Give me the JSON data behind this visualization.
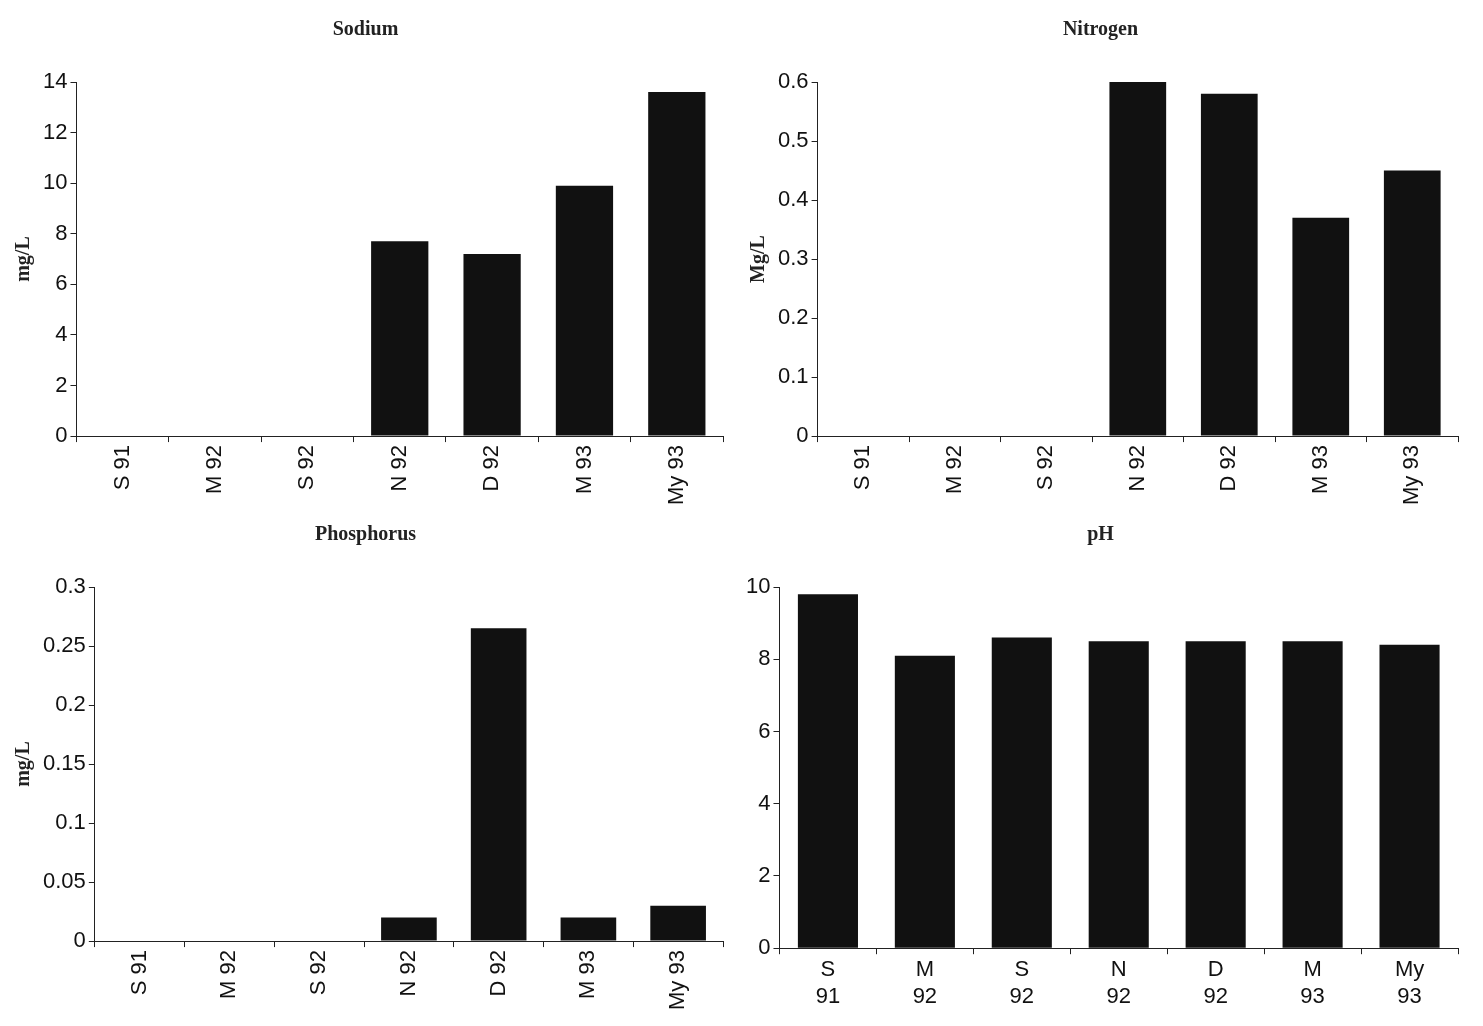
{
  "chart_data": [
    {
      "type": "bar",
      "title": "Sodium",
      "ylabel": "mg/L",
      "categories": [
        "S 91",
        "M 92",
        "S 92",
        "N 92",
        "D 92",
        "M 93",
        "My 93"
      ],
      "values": [
        0,
        0,
        0,
        7.7,
        7.2,
        9.9,
        13.6
      ],
      "color": "#111111",
      "ylim": [
        0,
        14
      ],
      "yticks": [
        0,
        2,
        4,
        6,
        8,
        10,
        12,
        14
      ]
    },
    {
      "type": "bar",
      "title": "Nitrogen",
      "ylabel": "Mg/L",
      "categories": [
        "S 91",
        "M 92",
        "S 92",
        "N 92",
        "D 92",
        "M 93",
        "My 93"
      ],
      "values": [
        0,
        0,
        0,
        0.6,
        0.58,
        0.37,
        0.45
      ],
      "color": "#111111",
      "ylim": [
        0,
        0.6
      ],
      "yticks": [
        0,
        0.1,
        0.2,
        0.3,
        0.4,
        0.5,
        0.6
      ]
    },
    {
      "type": "bar",
      "title": "Phosphorus",
      "ylabel": "mg/L",
      "categories": [
        "S 91",
        "M 92",
        "S 92",
        "N 92",
        "D 92",
        "M 93",
        "My 93"
      ],
      "values": [
        0,
        0,
        0,
        0.02,
        0.265,
        0.02,
        0.03
      ],
      "color": "#111111",
      "ylim": [
        0,
        0.3
      ],
      "yticks": [
        0,
        0.05,
        0.1,
        0.15,
        0.2,
        0.25,
        0.3
      ]
    },
    {
      "type": "bar",
      "title": "pH",
      "categories": [
        "S 91",
        "M 92",
        "S 92",
        "N 92",
        "D 92",
        "M 93",
        "My 93"
      ],
      "values": [
        9.8,
        8.1,
        8.6,
        8.5,
        8.5,
        8.5,
        8.4
      ],
      "color": "#111111",
      "ylim": [
        0,
        10
      ],
      "yticks": [
        0,
        2,
        4,
        6,
        8,
        10
      ]
    }
  ]
}
